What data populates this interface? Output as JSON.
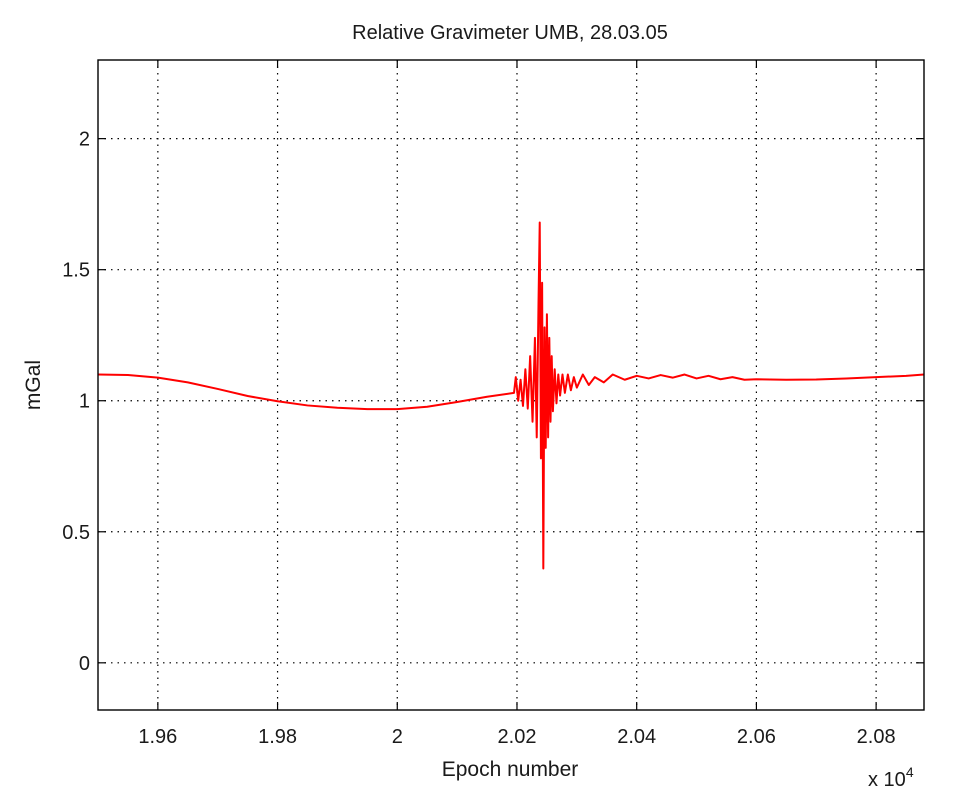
{
  "chart_data": {
    "type": "line",
    "title": "Relative Gravimeter UMB, 28.03.05",
    "xlabel": "Epoch number",
    "ylabel": "mGal",
    "x_multiplier_label": "x 10",
    "x_multiplier_exponent": "4",
    "xlim": [
      19500,
      20880
    ],
    "ylim": [
      -0.18,
      2.3
    ],
    "xticks": [
      19600,
      19800,
      20000,
      20200,
      20400,
      20600,
      20800
    ],
    "xtick_labels": [
      "1.96",
      "1.98",
      "2",
      "2.02",
      "2.04",
      "2.06",
      "2.08"
    ],
    "yticks": [
      0,
      0.5,
      1,
      1.5,
      2
    ],
    "ytick_labels": [
      "0",
      "0.5",
      "1",
      "1.5",
      "2"
    ],
    "grid": true,
    "series": [
      {
        "color": "#ff0000",
        "x": [
          19500,
          19550,
          19600,
          19650,
          19700,
          19750,
          19800,
          19850,
          19900,
          19950,
          20000,
          20050,
          20100,
          20150,
          20195,
          20198,
          20202,
          20206,
          20210,
          20214,
          20218,
          20222,
          20226,
          20230,
          20233,
          20236,
          20238,
          20240,
          20242,
          20244,
          20246,
          20248,
          20250,
          20252,
          20254,
          20256,
          20258,
          20260,
          20263,
          20266,
          20269,
          20272,
          20276,
          20280,
          20285,
          20290,
          20295,
          20300,
          20310,
          20320,
          20330,
          20345,
          20360,
          20380,
          20400,
          20420,
          20440,
          20460,
          20480,
          20500,
          20520,
          20540,
          20560,
          20580,
          20600,
          20650,
          20700,
          20750,
          20800,
          20850,
          20880
        ],
        "y": [
          1.1,
          1.098,
          1.088,
          1.07,
          1.045,
          1.018,
          0.998,
          0.982,
          0.973,
          0.968,
          0.968,
          0.977,
          0.995,
          1.015,
          1.03,
          1.09,
          1.0,
          1.08,
          0.98,
          1.12,
          0.97,
          1.17,
          0.92,
          1.24,
          0.86,
          1.38,
          1.68,
          0.78,
          1.45,
          0.36,
          1.28,
          0.82,
          1.33,
          0.86,
          1.24,
          0.92,
          1.17,
          0.96,
          1.12,
          0.99,
          1.1,
          1.02,
          1.1,
          1.03,
          1.1,
          1.04,
          1.09,
          1.05,
          1.1,
          1.06,
          1.09,
          1.07,
          1.1,
          1.08,
          1.095,
          1.085,
          1.098,
          1.088,
          1.1,
          1.085,
          1.095,
          1.082,
          1.09,
          1.08,
          1.082,
          1.08,
          1.081,
          1.085,
          1.09,
          1.095,
          1.1
        ]
      }
    ]
  }
}
